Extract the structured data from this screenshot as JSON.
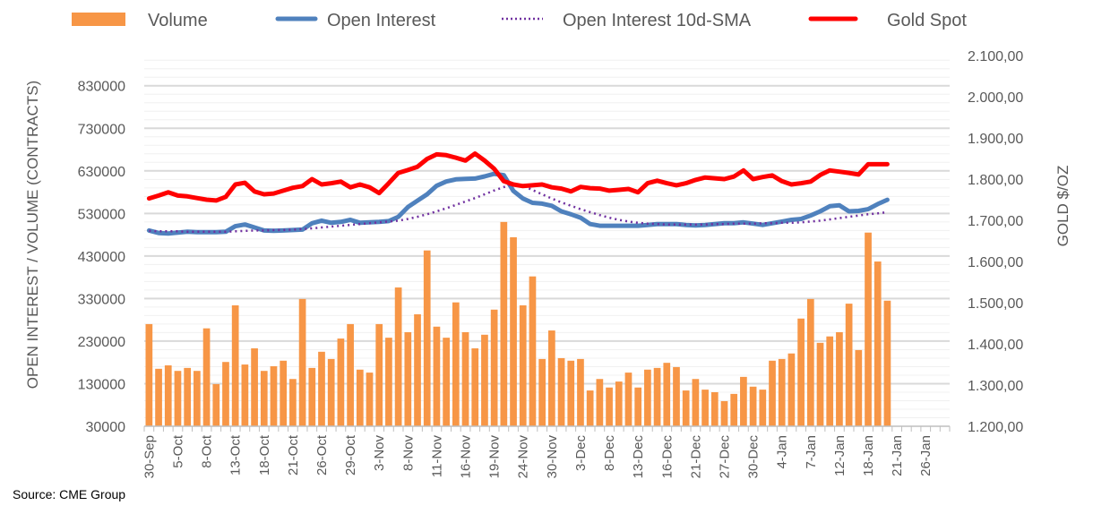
{
  "chart_data": {
    "type": "bar+line",
    "source": "Source: CME Group",
    "legend": {
      "placement": "top",
      "entries": [
        "Volume",
        "Open Interest",
        "Open Interest 10d-SMA",
        "Gold Spot"
      ]
    },
    "colors": {
      "volume": "#F79646",
      "open_interest": "#4F81BD",
      "sma": "#7030A0",
      "gold": "#FF0000",
      "grid": "#D9D9D9",
      "text": "#595959"
    },
    "ylabel_left": "OPEN INTEREST / VOLUME (CONTRACTS)",
    "ylabel_right": "GOLD $/OZ",
    "ylim_left": [
      30000,
      901000
    ],
    "ylim_right": [
      1200,
      2100
    ],
    "yticks_left": [
      "830000",
      "730000",
      "630000",
      "530000",
      "430000",
      "330000",
      "230000",
      "130000",
      "30000"
    ],
    "yticks_left_values": [
      830000,
      730000,
      630000,
      530000,
      430000,
      330000,
      230000,
      130000,
      30000
    ],
    "yticks_right": [
      "2.100,00",
      "2.000,00",
      "1.900,00",
      "1.800,00",
      "1.700,00",
      "1.600,00",
      "1.500,00",
      "1.400,00",
      "1.300,00",
      "1.200,00"
    ],
    "yticks_right_values": [
      2100,
      2000,
      1900,
      1800,
      1700,
      1600,
      1500,
      1400,
      1300,
      1200
    ],
    "total_slots": 84,
    "xtick_every": 3,
    "xtick_labels": [
      "30-Sep",
      "5-Oct",
      "8-Oct",
      "13-Oct",
      "18-Oct",
      "21-Oct",
      "26-Oct",
      "29-Oct",
      "3-Nov",
      "8-Nov",
      "11-Nov",
      "16-Nov",
      "19-Nov",
      "24-Nov",
      "30-Nov",
      "3-Dec",
      "8-Dec",
      "13-Dec",
      "16-Dec",
      "21-Dec",
      "27-Dec",
      "30-Dec",
      "4-Jan",
      "7-Jan",
      "12-Jan",
      "18-Jan",
      "21-Jan",
      "26-Jan"
    ],
    "series": [
      {
        "name": "Volume",
        "axis": "left",
        "kind": "bar",
        "values": [
          270000,
          165000,
          173000,
          160000,
          167000,
          160000,
          260000,
          129000,
          181000,
          314000,
          175000,
          213000,
          160000,
          171000,
          184000,
          141000,
          329000,
          167000,
          205000,
          188000,
          236000,
          270000,
          163000,
          156000,
          270000,
          238000,
          356000,
          251000,
          293000,
          443000,
          264000,
          238000,
          321000,
          251000,
          213000,
          245000,
          304000,
          510000,
          474000,
          314000,
          382000,
          188000,
          255000,
          190000,
          184000,
          188000,
          114000,
          141000,
          121000,
          135000,
          156000,
          121000,
          163000,
          167000,
          179000,
          169000,
          114000,
          141000,
          116000,
          110000,
          89000,
          106000,
          146000,
          123000,
          116000,
          184000,
          188000,
          201000,
          283000,
          329000,
          226000,
          241000,
          251000,
          318000,
          209000,
          485000,
          417000,
          325000
        ]
      },
      {
        "name": "Open Interest",
        "axis": "left",
        "kind": "line",
        "values": [
          490000,
          484000,
          483000,
          485000,
          487000,
          486000,
          486000,
          486000,
          487000,
          500000,
          504000,
          497000,
          490000,
          489000,
          490000,
          491000,
          492000,
          507000,
          513000,
          508000,
          510000,
          515000,
          508000,
          509000,
          510000,
          512000,
          522000,
          545000,
          560000,
          575000,
          595000,
          605000,
          610000,
          611000,
          612000,
          617000,
          623000,
          620000,
          583000,
          565000,
          555000,
          553000,
          548000,
          535000,
          528000,
          520000,
          505000,
          501000,
          501000,
          501000,
          501000,
          501000,
          503000,
          505000,
          505000,
          505000,
          503000,
          502000,
          503000,
          505000,
          507000,
          507000,
          509000,
          506000,
          503000,
          507000,
          511000,
          515000,
          517000,
          525000,
          535000,
          547000,
          549000,
          535000,
          536000,
          540000,
          552000,
          562000
        ]
      },
      {
        "name": "Open Interest 10d-SMA",
        "axis": "left",
        "kind": "dotted-line",
        "values": [
          489000,
          488000,
          488000,
          488000,
          487000,
          487000,
          487000,
          487000,
          487000,
          488000,
          489000,
          490000,
          490000,
          491000,
          491000,
          492000,
          493000,
          495000,
          497000,
          499000,
          501000,
          503000,
          505000,
          507000,
          509000,
          511000,
          513000,
          517000,
          522000,
          528000,
          535000,
          542000,
          550000,
          558000,
          566000,
          575000,
          584000,
          592000,
          600000,
          595000,
          585000,
          575000,
          565000,
          556000,
          548000,
          540000,
          533000,
          526000,
          520000,
          515000,
          511000,
          508000,
          506000,
          505000,
          504000,
          504000,
          504000,
          504000,
          504000,
          505000,
          505000,
          506000,
          506000,
          506000,
          507000,
          507000,
          508000,
          508000,
          509000,
          511000,
          513000,
          516000,
          519000,
          522000,
          525000,
          528000,
          530000,
          533000
        ]
      },
      {
        "name": "Gold Spot",
        "axis": "right",
        "kind": "line",
        "values": [
          1753,
          1760,
          1768,
          1760,
          1758,
          1754,
          1750,
          1748,
          1757,
          1787,
          1791,
          1770,
          1763,
          1765,
          1772,
          1779,
          1783,
          1800,
          1787,
          1790,
          1794,
          1780,
          1787,
          1780,
          1766,
          1790,
          1815,
          1822,
          1830,
          1849,
          1860,
          1858,
          1852,
          1845,
          1862,
          1845,
          1825,
          1795,
          1787,
          1783,
          1785,
          1787,
          1780,
          1777,
          1770,
          1781,
          1778,
          1777,
          1772,
          1774,
          1776,
          1768,
          1790,
          1796,
          1790,
          1785,
          1790,
          1798,
          1804,
          1802,
          1800,
          1806,
          1821,
          1800,
          1805,
          1809,
          1795,
          1787,
          1790,
          1794,
          1810,
          1821,
          1818,
          1815,
          1811,
          1836,
          1836,
          1836
        ]
      }
    ]
  }
}
